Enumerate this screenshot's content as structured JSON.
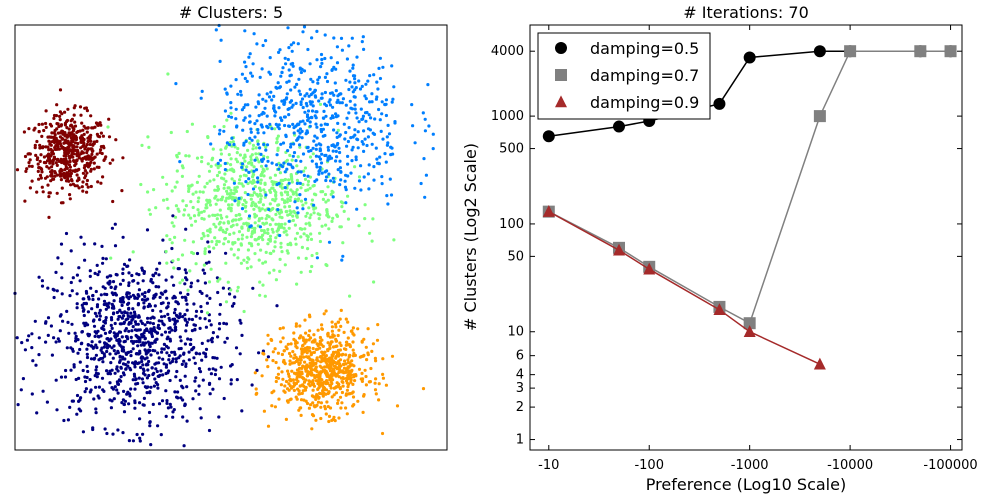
{
  "chart_data": [
    {
      "type": "scatter",
      "title": "# Clusters: 5",
      "xlabel": "",
      "ylabel": "",
      "xlim": [
        0,
        10
      ],
      "ylim": [
        0,
        10
      ],
      "x_ticks": [],
      "y_ticks": [],
      "grid": false,
      "clusters": [
        {
          "color": "#800000",
          "center": [
            1.25,
            7.0
          ],
          "spread": [
            0.45,
            0.45
          ],
          "points": 520,
          "shape": "gauss"
        },
        {
          "color": "#000080",
          "center": [
            2.75,
            2.6
          ],
          "spread": [
            1.05,
            1.0
          ],
          "points": 1000,
          "shape": "gauss"
        },
        {
          "color": "#7fff7f",
          "center": [
            5.5,
            5.8
          ],
          "spread": [
            2.2,
            1.9
          ],
          "points": 750,
          "shape": "band"
        },
        {
          "color": "#007fff",
          "center": [
            6.9,
            7.7
          ],
          "spread": [
            2.4,
            2.3
          ],
          "points": 650,
          "shape": "band"
        },
        {
          "color": "#ff9900",
          "center": [
            7.1,
            1.9
          ],
          "spread": [
            0.55,
            0.5
          ],
          "points": 700,
          "shape": "gauss"
        }
      ]
    },
    {
      "type": "line",
      "title": "# Iterations: 70",
      "xlabel": "Preference (Log10 Scale)",
      "ylabel": "# Clusters (Log2 Scale)",
      "x_scale": "log10",
      "y_scale": "log2",
      "xlim": [
        -6.5,
        -130000
      ],
      "ylim": [
        0.8,
        7000
      ],
      "x_ticks": [
        {
          "v": -10,
          "label": "-10"
        },
        {
          "v": -100,
          "label": "-100"
        },
        {
          "v": -1000,
          "label": "-1000"
        },
        {
          "v": -10000,
          "label": "-10000"
        },
        {
          "v": -100000,
          "label": "-100000"
        }
      ],
      "y_ticks": [
        {
          "v": 1,
          "label": "1"
        },
        {
          "v": 2,
          "label": "2"
        },
        {
          "v": 3,
          "label": "3"
        },
        {
          "v": 4,
          "label": "4"
        },
        {
          "v": 6,
          "label": "6"
        },
        {
          "v": 10,
          "label": "10"
        },
        {
          "v": 50,
          "label": "50"
        },
        {
          "v": 100,
          "label": "100"
        },
        {
          "v": 500,
          "label": "500"
        },
        {
          "v": 1000,
          "label": "1000"
        },
        {
          "v": 4000,
          "label": "4000"
        }
      ],
      "legend_position": "top-left",
      "grid": false,
      "series": [
        {
          "name": "damping=0.5",
          "color": "#000000",
          "marker": "circle",
          "x": [
            -10,
            -50,
            -100,
            -500,
            -1000,
            -5000,
            -10000,
            -50000,
            -100000
          ],
          "y": [
            650,
            800,
            900,
            1300,
            3500,
            4000,
            4000,
            4000,
            4000
          ]
        },
        {
          "name": "damping=0.7",
          "color": "#808080",
          "marker": "square",
          "x": [
            -10,
            -50,
            -100,
            -500,
            -1000,
            -5000,
            -10000,
            -50000,
            -100000
          ],
          "y": [
            130,
            60,
            40,
            17,
            12,
            1000,
            4000,
            4000,
            4000
          ]
        },
        {
          "name": "damping=0.9",
          "color": "#a52a2a",
          "marker": "triangle",
          "x": [
            -10,
            -50,
            -100,
            -500,
            -1000,
            -5000
          ],
          "y": [
            130,
            57,
            38,
            16,
            10,
            5
          ]
        }
      ]
    }
  ]
}
